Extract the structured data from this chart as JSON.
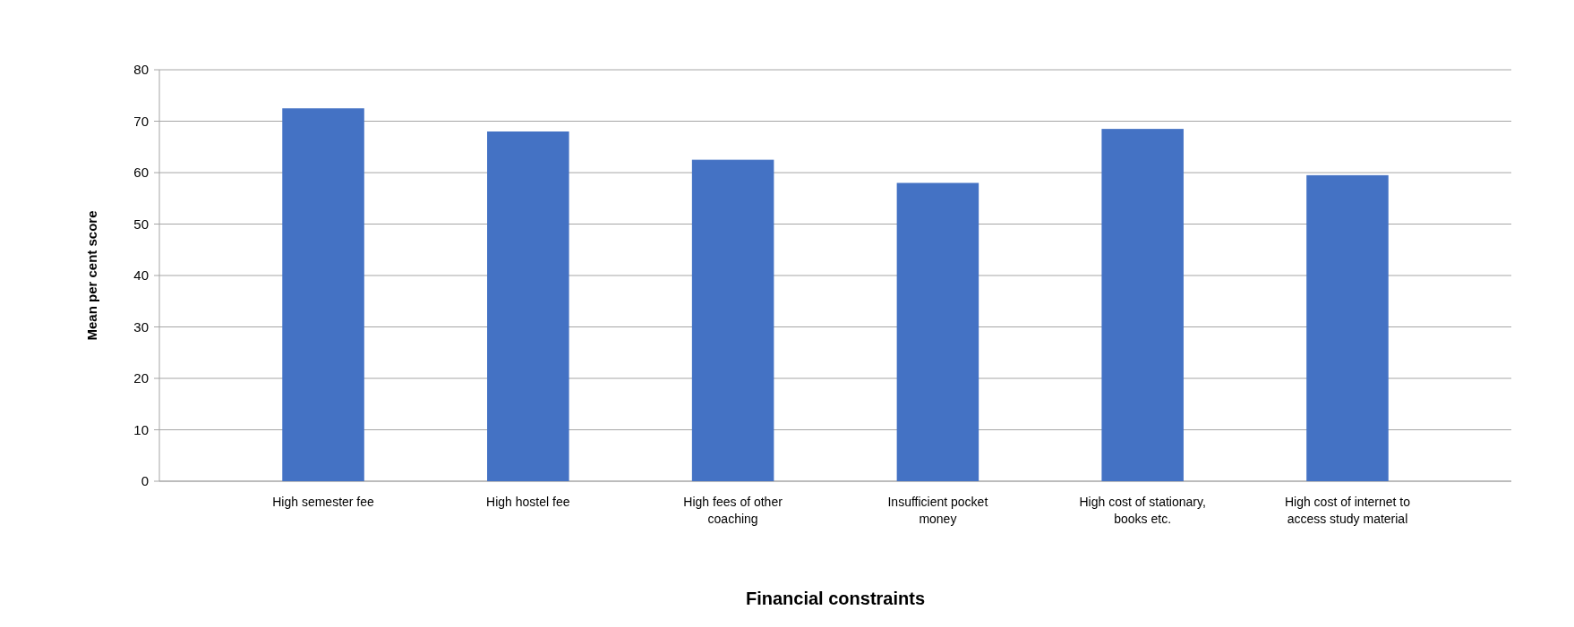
{
  "chart_data": {
    "type": "bar",
    "xlabel": "Financial constraints",
    "ylabel": "Mean per cent score",
    "categories": [
      "High semester fee",
      "High hostel fee",
      "High fees of other coaching",
      "Insufficient pocket money",
      "High cost of stationary, books etc.",
      "High cost of internet to access study material"
    ],
    "values": [
      72.5,
      68,
      62.5,
      58,
      68.5,
      59.5
    ],
    "color": "#4472c4",
    "ylim": [
      0,
      80
    ],
    "yticks": [
      0,
      10,
      20,
      30,
      40,
      50,
      60,
      70,
      80
    ],
    "grid": "y"
  }
}
